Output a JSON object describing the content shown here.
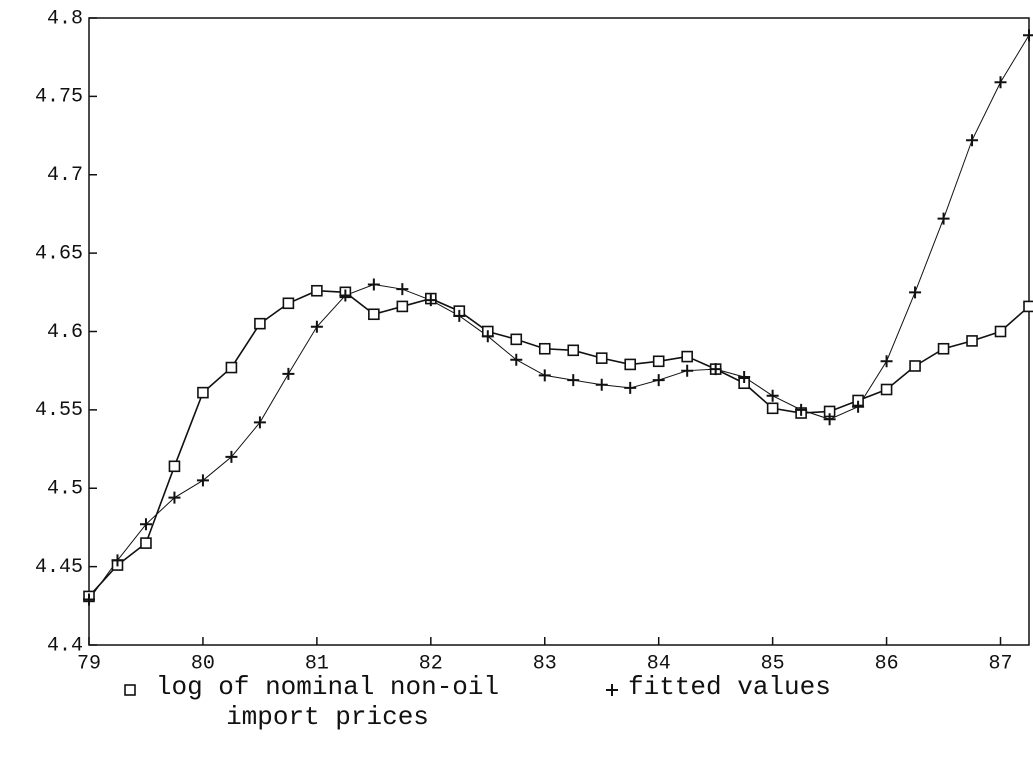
{
  "chart_data": {
    "type": "line",
    "x": [
      79,
      79.25,
      79.5,
      79.75,
      80,
      80.25,
      80.5,
      80.75,
      81,
      81.25,
      81.5,
      81.75,
      82,
      82.25,
      82.5,
      82.75,
      83,
      83.25,
      83.5,
      83.75,
      84,
      84.25,
      84.5,
      84.75,
      85,
      85.25,
      85.5,
      85.75,
      86,
      86.25,
      86.5,
      86.75,
      87,
      87.25
    ],
    "series": [
      {
        "name": "log of nominal non-oil import prices",
        "color": "#111111",
        "marker": "square",
        "values": [
          4.431,
          4.451,
          4.465,
          4.514,
          4.561,
          4.577,
          4.605,
          4.618,
          4.626,
          4.625,
          4.611,
          4.616,
          4.621,
          4.613,
          4.6,
          4.595,
          4.589,
          4.588,
          4.583,
          4.579,
          4.581,
          4.584,
          4.576,
          4.567,
          4.551,
          4.548,
          4.549,
          4.556,
          4.563,
          4.578,
          4.589,
          4.594,
          4.6,
          4.616
        ]
      },
      {
        "name": "fitted values",
        "color": "#111111",
        "marker": "plus",
        "values": [
          4.429,
          4.454,
          4.477,
          4.494,
          4.505,
          4.52,
          4.542,
          4.573,
          4.603,
          4.623,
          4.63,
          4.627,
          4.62,
          4.61,
          4.597,
          4.582,
          4.572,
          4.569,
          4.566,
          4.564,
          4.569,
          4.575,
          4.576,
          4.571,
          4.559,
          4.55,
          4.544,
          4.552,
          4.581,
          4.625,
          4.672,
          4.722,
          4.759,
          4.789
        ]
      }
    ],
    "xlim": [
      79,
      87.25
    ],
    "xticks": [
      79,
      80,
      81,
      82,
      83,
      84,
      85,
      86,
      87
    ],
    "ylim": [
      4.4,
      4.8
    ],
    "yticks": [
      4.4,
      4.45,
      4.5,
      4.55,
      4.6,
      4.65,
      4.7,
      4.75,
      4.8
    ],
    "grid": false,
    "legend": "bottom"
  }
}
